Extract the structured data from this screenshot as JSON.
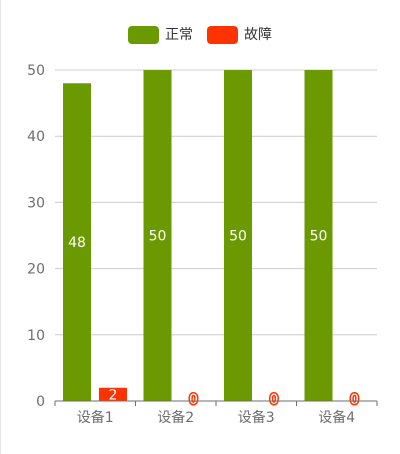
{
  "chart_data": {
    "type": "bar",
    "categories": [
      "设备1",
      "设备2",
      "设备3",
      "设备4"
    ],
    "series": [
      {
        "name": "正常",
        "values": [
          48,
          50,
          50,
          50
        ],
        "color": "#6a9a00"
      },
      {
        "name": "故障",
        "values": [
          2,
          0,
          0,
          0
        ],
        "color": "#ff3300"
      }
    ],
    "ylim": [
      0,
      50
    ],
    "yticks": [
      0,
      10,
      20,
      30,
      40,
      50
    ],
    "grid": true,
    "legend_position": "top-center",
    "data_labels": true
  }
}
